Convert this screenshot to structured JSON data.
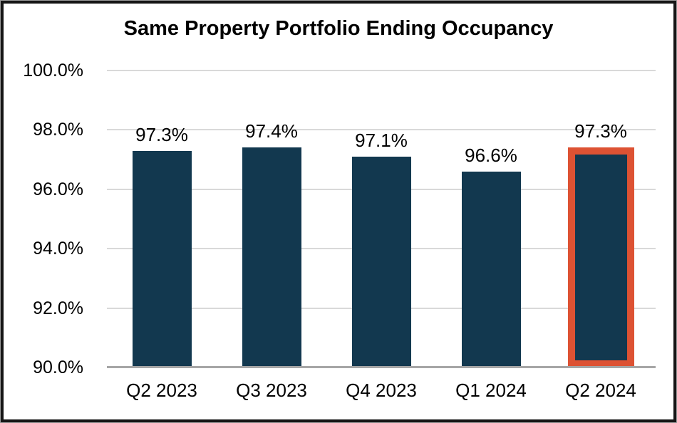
{
  "chart_data": {
    "type": "bar",
    "title": "Same Property Portfolio Ending Occupancy",
    "categories": [
      "Q2 2023",
      "Q3 2023",
      "Q4 2023",
      "Q1 2024",
      "Q2 2024"
    ],
    "values": [
      97.3,
      97.4,
      97.1,
      96.6,
      97.3
    ],
    "value_labels": [
      "97.3%",
      "97.4%",
      "97.1%",
      "96.6%",
      "97.3%"
    ],
    "xlabel": "",
    "ylabel": "",
    "ylim": [
      90,
      100
    ],
    "yticks": [
      100,
      98,
      96,
      94,
      92,
      90
    ],
    "ytick_labels": [
      "100.0%",
      "98.0%",
      "96.0%",
      "94.0%",
      "92.0%",
      "90.0%"
    ],
    "grid": true,
    "legend": "none",
    "highlight_index": 4,
    "highlighted_category": "Q2 2024",
    "colors": {
      "bar_fill": "#12384F",
      "highlight_outline": "#DD5233",
      "gridline": "#D9D9D9",
      "axis_line": "#A6A6A6",
      "label_text": "#000000",
      "frame_border": "#161616",
      "background": "#FFFFFF"
    }
  }
}
